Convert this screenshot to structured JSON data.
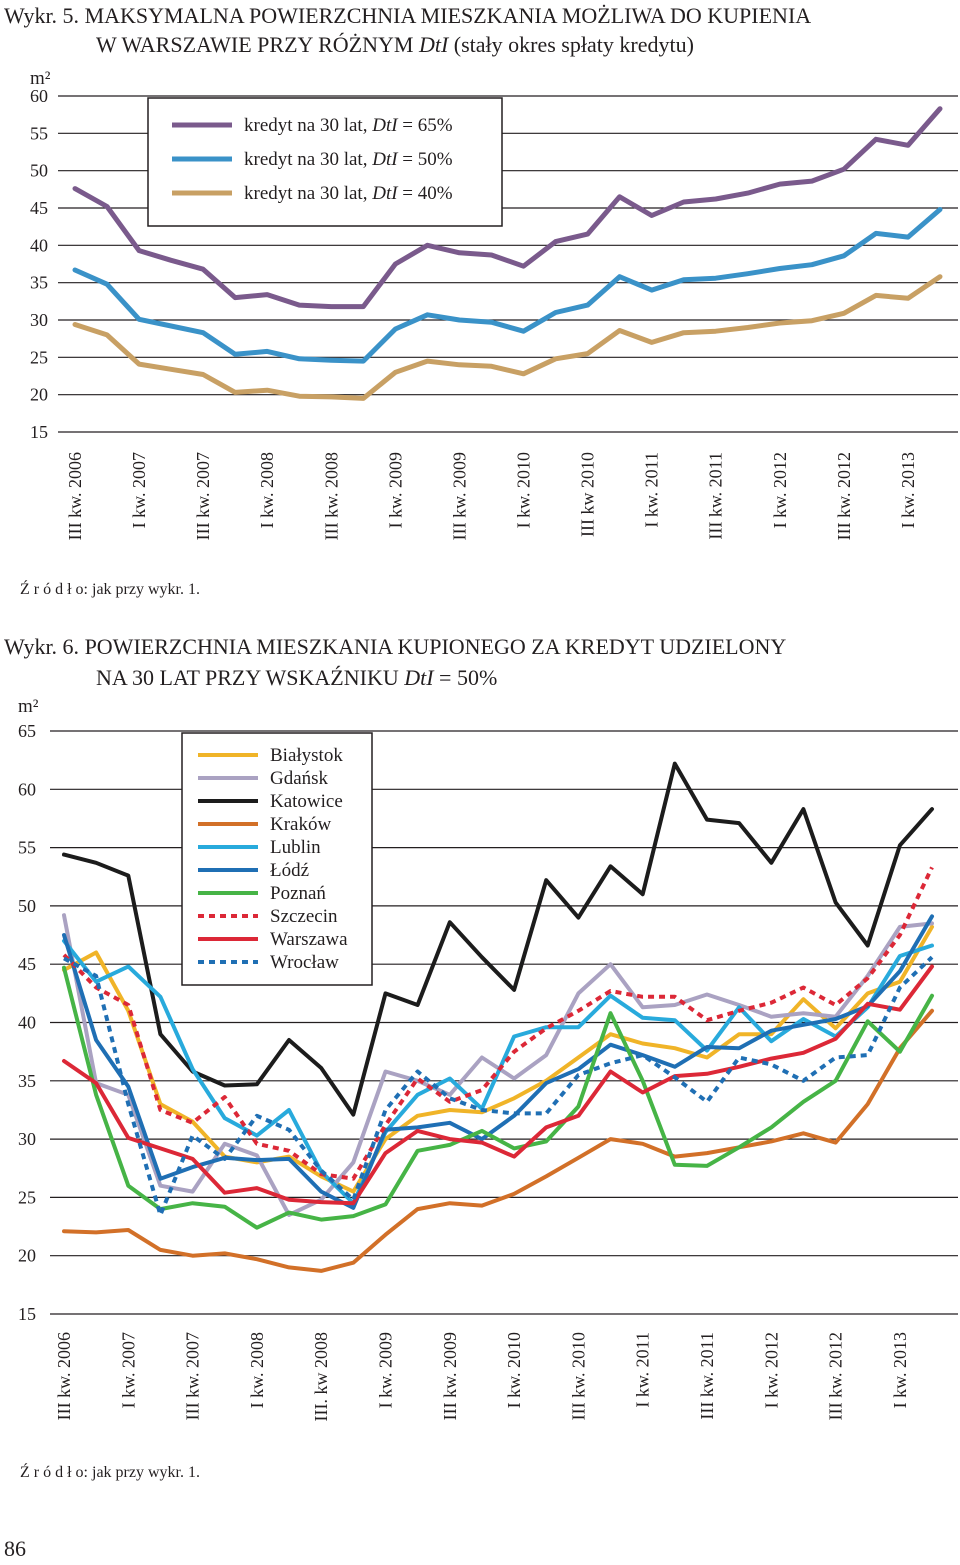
{
  "page": {
    "page_number": "86"
  },
  "chart_data": [
    {
      "type": "line",
      "figure_label": "Wykr. 5.",
      "title_line1": "MAKSYMALNA POWIERZCHNIA MIESZKANIA MOŻLIWA DO KUPIENIA",
      "title_line2_pre": "W WARSZAWIE PRZY RÓŻNYM ",
      "title_line2_italic": "DtI",
      "title_line2_post": " (stały okres spłaty kredytu)",
      "ylabel": "m²",
      "ylim": [
        15,
        60
      ],
      "yticks": [
        15,
        20,
        25,
        30,
        35,
        40,
        45,
        50,
        55,
        60
      ],
      "x_tick_labels": [
        "III kw. 2006",
        "I kw. 2007",
        "III kw. 2007",
        "I kw. 2008",
        "III kw. 2008",
        "I kw. 2009",
        "III kw. 2009",
        "I kw. 2010",
        "III kw 2010",
        "I kw. 2011",
        "III kw. 2011",
        "I kw. 2012",
        "III kw. 2012",
        "I kw. 2013"
      ],
      "x_points": 28,
      "series": [
        {
          "name_pre": "kredyt na 30 lat, ",
          "name_italic": "DtI",
          "name_post": " = 65%",
          "color": "#7a5a8c",
          "values": [
            47.6,
            45.2,
            39.3,
            38.0,
            36.8,
            33.0,
            33.4,
            32.0,
            31.8,
            31.8,
            37.5,
            40.0,
            39.0,
            38.7,
            37.2,
            40.5,
            41.5,
            46.5,
            44.0,
            45.8,
            46.2,
            47.0,
            48.2,
            48.6,
            50.2,
            54.2,
            53.4,
            58.3
          ]
        },
        {
          "name_pre": "kredyt na 30 lat, ",
          "name_italic": "DtI",
          "name_post": " = 50%",
          "color": "#3a92c8",
          "values": [
            36.7,
            34.8,
            30.1,
            29.2,
            28.3,
            25.4,
            25.8,
            24.8,
            24.6,
            24.5,
            28.8,
            30.7,
            30.0,
            29.7,
            28.5,
            31.0,
            32.0,
            35.8,
            34.0,
            35.4,
            35.6,
            36.2,
            36.9,
            37.4,
            38.6,
            41.6,
            41.1,
            44.8
          ]
        },
        {
          "name_pre": "kredyt na 30 lat, ",
          "name_italic": "DtI",
          "name_post": " = 40%",
          "color": "#c8a064",
          "values": [
            29.4,
            28.0,
            24.1,
            23.4,
            22.7,
            20.3,
            20.6,
            19.8,
            19.7,
            19.5,
            23.0,
            24.5,
            24.0,
            23.8,
            22.8,
            24.8,
            25.5,
            28.6,
            27.0,
            28.3,
            28.5,
            29.0,
            29.6,
            29.9,
            30.9,
            33.3,
            32.9,
            35.8
          ]
        }
      ]
    },
    {
      "type": "line",
      "figure_label": "Wykr. 6.",
      "title_line1": "POWIERZCHNIA MIESZKANIA KUPIONEGO ZA KREDYT UDZIELONY",
      "title_line2_pre": "NA 30 LAT PRZY WSKAŹNIKU ",
      "title_line2_italic": "DtI",
      "title_line2_post": " = 50%",
      "ylabel": "m²",
      "ylim": [
        15,
        65
      ],
      "yticks": [
        15,
        20,
        25,
        30,
        35,
        40,
        45,
        50,
        55,
        60,
        65
      ],
      "x_tick_labels": [
        "III kw. 2006",
        "I kw. 2007",
        "III kw. 2007",
        "I kw. 2008",
        "III. kw 2008",
        "I kw. 2009",
        "III kw. 2009",
        "I kw. 2010",
        "III kw. 2010",
        "I kw. 2011",
        "III kw. 2011",
        "I kw. 2012",
        "III kw. 2012",
        "I kw. 2013"
      ],
      "x_points": 28,
      "series": [
        {
          "name": "Białystok",
          "color": "#f0b428",
          "dash": "",
          "values": [
            44.5,
            46.0,
            41.0,
            33.0,
            31.5,
            28.5,
            28.0,
            28.5,
            26.8,
            25.5,
            30.0,
            32.0,
            32.5,
            32.3,
            33.5,
            35.0,
            37.0,
            39.0,
            38.2,
            37.8,
            37.0,
            39.0,
            39.0,
            42.0,
            39.5,
            42.5,
            43.5,
            48.2
          ]
        },
        {
          "name": "Gdańsk",
          "color": "#aaa2c2",
          "dash": "",
          "values": [
            49.2,
            34.8,
            33.8,
            26.0,
            25.5,
            29.6,
            28.6,
            23.5,
            24.8,
            28.0,
            35.8,
            35.0,
            33.8,
            37.0,
            35.2,
            37.2,
            42.5,
            45.0,
            41.3,
            41.5,
            42.4,
            41.5,
            40.5,
            40.8,
            40.5,
            44.0,
            48.2,
            48.5
          ]
        },
        {
          "name": "Katowice",
          "color": "#1c1c1c",
          "dash": "",
          "values": [
            54.4,
            53.7,
            52.6,
            39.0,
            35.8,
            34.6,
            34.7,
            38.5,
            36.1,
            32.1,
            42.5,
            41.5,
            48.6,
            45.6,
            42.8,
            52.2,
            49.0,
            53.4,
            51.0,
            62.2,
            57.4,
            57.1,
            53.7,
            58.3,
            50.3,
            46.6,
            55.2,
            58.3
          ]
        },
        {
          "name": "Kraków",
          "color": "#d27028",
          "dash": "",
          "values": [
            22.1,
            22.0,
            22.2,
            20.5,
            20.0,
            20.2,
            19.7,
            19.0,
            18.7,
            19.4,
            21.8,
            24.0,
            24.5,
            24.3,
            25.3,
            26.8,
            28.4,
            30.0,
            29.6,
            28.5,
            28.8,
            29.3,
            29.8,
            30.5,
            29.7,
            33.0,
            37.8,
            41.0
          ]
        },
        {
          "name": "Lublin",
          "color": "#28aadc",
          "dash": "",
          "values": [
            47.0,
            43.5,
            44.8,
            42.2,
            36.0,
            31.8,
            30.3,
            32.5,
            27.2,
            24.5,
            30.6,
            33.8,
            35.2,
            32.6,
            38.8,
            39.6,
            39.6,
            42.3,
            40.4,
            40.2,
            37.6,
            41.3,
            38.4,
            40.3,
            38.8,
            41.3,
            45.7,
            46.6
          ]
        },
        {
          "name": "Łódź",
          "color": "#1f6fb4",
          "dash": "",
          "values": [
            47.5,
            38.5,
            34.5,
            26.6,
            27.6,
            28.4,
            28.2,
            28.3,
            25.5,
            24.1,
            30.8,
            31.0,
            31.4,
            30.0,
            32.0,
            34.8,
            36.0,
            38.1,
            37.2,
            36.2,
            37.9,
            37.8,
            39.3,
            39.8,
            40.3,
            41.4,
            44.4,
            49.1
          ]
        },
        {
          "name": "Poznań",
          "color": "#46b446",
          "dash": "",
          "values": [
            44.7,
            33.8,
            26.0,
            24.0,
            24.5,
            24.2,
            22.4,
            23.7,
            23.1,
            23.4,
            24.4,
            29.0,
            29.5,
            30.7,
            29.2,
            29.8,
            32.8,
            40.8,
            35.0,
            27.8,
            27.7,
            29.3,
            31.0,
            33.2,
            35.0,
            40.1,
            37.5,
            42.3
          ]
        },
        {
          "name": "Szczecin",
          "color": "#dc2837",
          "dash": "6,5",
          "values": [
            45.8,
            43.0,
            41.5,
            32.5,
            31.4,
            33.6,
            29.6,
            29.0,
            27.0,
            26.6,
            31.2,
            35.2,
            33.2,
            34.2,
            37.5,
            39.5,
            41.0,
            42.7,
            42.2,
            42.2,
            40.2,
            41.0,
            41.7,
            43.0,
            41.5,
            43.8,
            47.5,
            53.3
          ]
        },
        {
          "name": "Warszawa",
          "color": "#dc2837",
          "dash": "",
          "values": [
            36.7,
            34.8,
            30.1,
            29.2,
            28.3,
            25.4,
            25.8,
            24.8,
            24.6,
            24.5,
            28.8,
            30.7,
            30.0,
            29.7,
            28.5,
            31.0,
            32.0,
            35.8,
            34.0,
            35.4,
            35.6,
            36.2,
            36.9,
            37.4,
            38.6,
            41.6,
            41.1,
            44.8
          ]
        },
        {
          "name": "Wrocław",
          "color": "#1f6fb4",
          "dash": "6,5",
          "values": [
            45.5,
            44.0,
            33.0,
            23.5,
            30.3,
            28.3,
            32.0,
            30.8,
            27.3,
            24.8,
            32.5,
            35.8,
            33.5,
            32.5,
            32.2,
            32.2,
            35.5,
            36.5,
            37.2,
            35.3,
            33.2,
            37.0,
            36.4,
            35.0,
            37.0,
            37.2,
            43.0,
            45.6
          ]
        }
      ]
    }
  ],
  "figures": [
    {
      "source_label": "Ź r ó d ł o: jak przy wykr. 1."
    },
    {
      "source_label": "Ź r ó d ł o: jak przy wykr. 1."
    }
  ]
}
